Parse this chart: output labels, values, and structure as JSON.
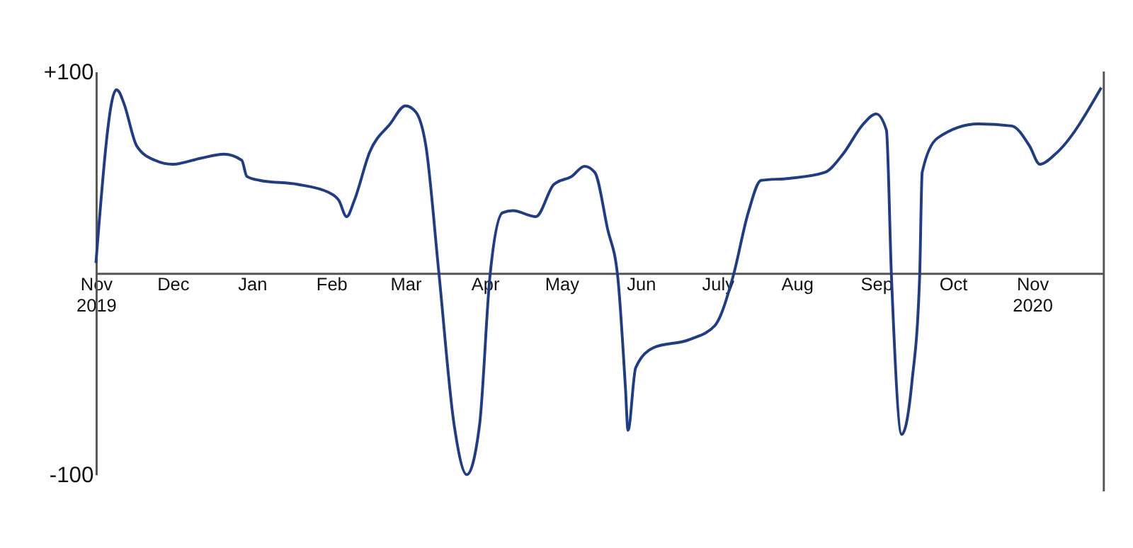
{
  "chart_data": {
    "type": "line",
    "line_style": "solid",
    "marker": "none",
    "grid": false,
    "ref_lines": [
      {
        "axis": "x",
        "value": "2020-11-29",
        "color": "#555555"
      }
    ],
    "ylim": [
      -100,
      100
    ],
    "yticks": [
      {
        "value": 100,
        "label": "+100"
      },
      {
        "value": -100,
        "label": "-100"
      }
    ],
    "xlim": [
      "2019-11-01",
      "2020-11-29"
    ],
    "xticks": [
      {
        "value": "2019-11-01",
        "label": "Nov 2019"
      },
      {
        "value": "2019-12-01",
        "label": "Dec"
      },
      {
        "value": "2020-01-01",
        "label": "Jan"
      },
      {
        "value": "2020-02-01",
        "label": "Feb"
      },
      {
        "value": "2020-03-01",
        "label": "Mar"
      },
      {
        "value": "2020-04-01",
        "label": "Apr"
      },
      {
        "value": "2020-05-01",
        "label": "May"
      },
      {
        "value": "2020-06-01",
        "label": "Jun"
      },
      {
        "value": "2020-07-01",
        "label": "July"
      },
      {
        "value": "2020-08-01",
        "label": "Aug"
      },
      {
        "value": "2020-09-01",
        "label": "Sep"
      },
      {
        "value": "2020-10-01",
        "label": "Oct"
      },
      {
        "value": "2020-11-01",
        "label": "Nov 2020"
      }
    ],
    "series": [
      {
        "color": "#1f3c88",
        "x": [
          "2019-11-01",
          "2019-11-09",
          "2019-11-10",
          "2019-11-12",
          "2019-11-17",
          "2019-11-24",
          "2019-12-01",
          "2019-12-12",
          "2019-12-21",
          "2019-12-28",
          "2019-12-30",
          "2020-01-04",
          "2020-01-19",
          "2020-01-31",
          "2020-02-04",
          "2020-02-07",
          "2020-02-10",
          "2020-02-16",
          "2020-02-24",
          "2020-03-01",
          "2020-03-05",
          "2020-03-09",
          "2020-03-14",
          "2020-03-20",
          "2020-03-25",
          "2020-03-30",
          "2020-04-03",
          "2020-04-08",
          "2020-04-12",
          "2020-04-21",
          "2020-04-28",
          "2020-05-05",
          "2020-05-10",
          "2020-05-14",
          "2020-05-19",
          "2020-05-23",
          "2020-05-26",
          "2020-05-27",
          "2020-05-30",
          "2020-06-06",
          "2020-06-20",
          "2020-06-30",
          "2020-07-07",
          "2020-07-13",
          "2020-07-18",
          "2020-07-29",
          "2020-08-12",
          "2020-08-19",
          "2020-08-27",
          "2020-09-01",
          "2020-09-05",
          "2020-09-07",
          "2020-09-11",
          "2020-09-15",
          "2020-09-18",
          "2020-09-19",
          "2020-09-25",
          "2020-10-11",
          "2020-10-24",
          "2020-10-31",
          "2020-11-04",
          "2020-11-10",
          "2020-11-28"
        ],
        "values": [
          5,
          91,
          90,
          84,
          63,
          56,
          54,
          57,
          59,
          56,
          48,
          46,
          44,
          40,
          36,
          28,
          36,
          60,
          74,
          83,
          80,
          63,
          1,
          -75,
          -100,
          -75,
          -2,
          30,
          31,
          28,
          44,
          48,
          53,
          50,
          22,
          -2,
          -57,
          -78,
          -47,
          -37,
          -33,
          -26,
          -2,
          30,
          46,
          47,
          50,
          59,
          74,
          79,
          71,
          -2,
          -80,
          -54,
          -2,
          50,
          67,
          74,
          73,
          63,
          54,
          59,
          92
        ]
      }
    ]
  }
}
